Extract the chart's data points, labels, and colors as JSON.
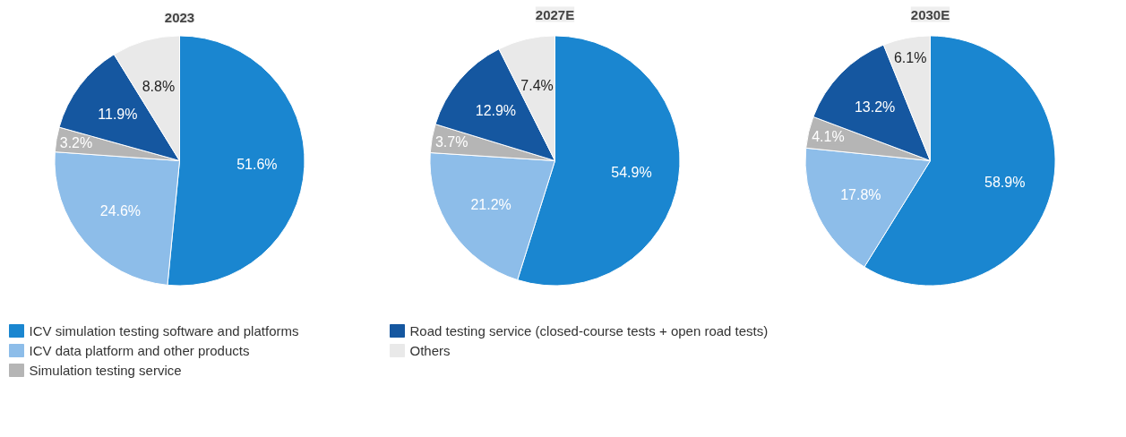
{
  "chart_data": [
    {
      "type": "pie",
      "title": "2023",
      "categories": [
        "ICV simulation testing software and platforms",
        "ICV data platform and other products",
        "Simulation testing service",
        "Road testing service (closed-course tests + open road tests)",
        "Others"
      ],
      "values": [
        51.6,
        24.6,
        3.2,
        11.9,
        8.8
      ],
      "value_labels": [
        "51.6%",
        "24.6%",
        "3.2%",
        "11.9%",
        "8.8%"
      ],
      "colors": [
        "#1a86d0",
        "#8dbde9",
        "#b5b5b5",
        "#1557a0",
        "#e9e9e9"
      ],
      "legend": "bottom"
    },
    {
      "type": "pie",
      "title": "2027E",
      "categories": [
        null,
        null,
        null,
        null,
        null
      ],
      "values": [
        54.9,
        21.2,
        3.7,
        12.9,
        7.4
      ],
      "value_labels": [
        "54.9%",
        "21.2%",
        "3.7%",
        "12.9%",
        "7.4%"
      ],
      "colors": [
        "#1a86d0",
        "#8dbde9",
        "#b5b5b5",
        "#1557a0",
        "#e9e9e9"
      ]
    },
    {
      "type": "pie",
      "title": "2030E",
      "categories": [
        null,
        null,
        null,
        null,
        null
      ],
      "values": [
        58.9,
        17.8,
        4.1,
        13.2,
        6.1
      ],
      "value_labels": [
        "58.9%",
        "17.8%",
        "4.1%",
        "13.2%",
        "6.1%"
      ],
      "colors": [
        "#1a86d0",
        "#8dbde9",
        "#b5b5b5",
        "#1557a0",
        "#e9e9e9"
      ]
    }
  ]
}
